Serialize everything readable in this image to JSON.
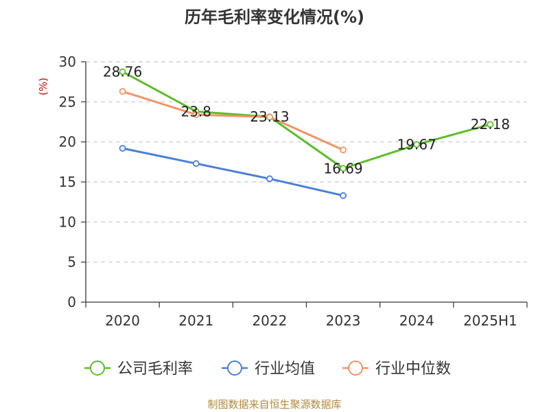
{
  "chart_data": {
    "type": "line",
    "title": "历年毛利率变化情况(%)",
    "ylabel": "(%)",
    "xlabel": "",
    "ylim": [
      0,
      30
    ],
    "yticks": [
      0,
      5,
      10,
      15,
      20,
      25,
      30
    ],
    "categories": [
      "2020",
      "2021",
      "2022",
      "2023",
      "2024",
      "2025H1"
    ],
    "grid": true,
    "legend_position": "bottom",
    "series": [
      {
        "name": "公司毛利率",
        "color": "#5bbd28",
        "values": [
          28.76,
          23.8,
          23.13,
          16.69,
          19.67,
          22.18
        ],
        "show_labels": true
      },
      {
        "name": "行业均值",
        "color": "#4a7fd6",
        "values": [
          19.2,
          17.3,
          15.4,
          13.3,
          null,
          null
        ],
        "show_labels": false
      },
      {
        "name": "行业中位数",
        "color": "#f29366",
        "values": [
          26.3,
          23.4,
          23.1,
          19.0,
          null,
          null
        ],
        "show_labels": false
      }
    ]
  },
  "source": "制图数据来自恒生聚源数据库"
}
